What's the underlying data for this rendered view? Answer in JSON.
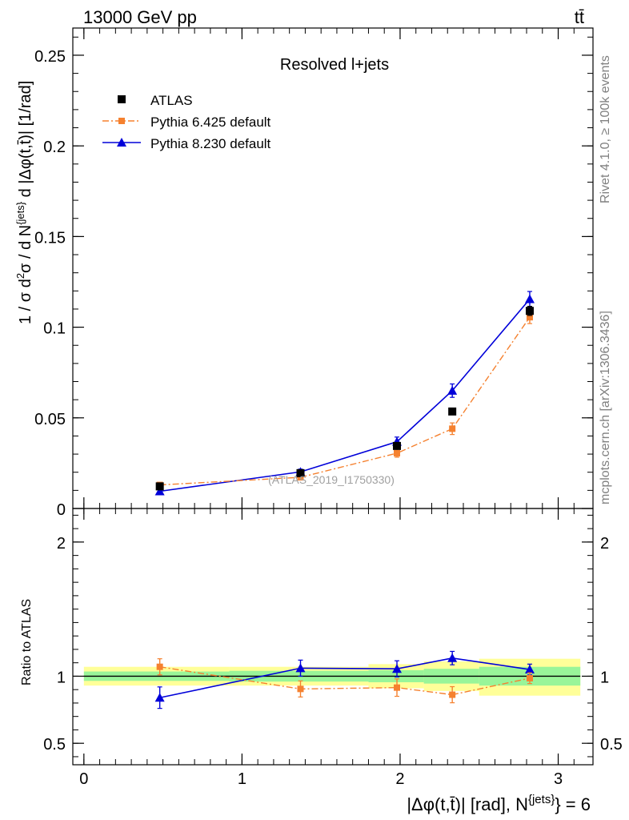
{
  "header": {
    "energy_label": "13000 GeV pp",
    "process_label": "tt̄"
  },
  "side": {
    "rivet_label": "Rivet 4.1.0, ≥ 100k events",
    "mcplots_label": "mcplots.cern.ch [arXiv:1306.3436]"
  },
  "colors": {
    "data": "#000000",
    "pythia6": "#f5812f",
    "pythia8": "#0000d9",
    "band_inner": "#99f599",
    "band_outer": "#ffff99",
    "watermark": "#a0a0a0"
  },
  "chart_data": [
    {
      "type": "scatter",
      "title": "Resolved l+jets",
      "watermark": "(ATLAS_2019_I1750330)",
      "ylabel": "1 / σ d²σ / d N^{jets} d |Δφ(t,t̄)| [1/rad]",
      "xlim": [
        -0.07,
        3.22
      ],
      "ylim": [
        0,
        0.265
      ],
      "yticks": [
        0,
        0.05,
        0.1,
        0.15,
        0.2,
        0.25
      ],
      "ytick_labels": [
        "0",
        "0.05",
        "0.1",
        "0.15",
        "0.2",
        "0.25"
      ],
      "legend": [
        "ATLAS",
        "Pythia 6.425 default",
        "Pythia 8.230 default"
      ],
      "legend_position": "top-left",
      "series": [
        {
          "name": "ATLAS",
          "style": "markers",
          "x": [
            0.48,
            1.37,
            1.98,
            2.33,
            2.82
          ],
          "y": [
            0.0122,
            0.0195,
            0.0345,
            0.0535,
            0.109
          ],
          "yerr": [
            0.0005,
            0.0007,
            0.001,
            0.0015,
            0.0025
          ]
        },
        {
          "name": "Pythia 6.425 default",
          "style": "dashdot",
          "x": [
            0.48,
            1.37,
            1.98,
            2.33,
            2.82
          ],
          "y": [
            0.013,
            0.0172,
            0.0305,
            0.044,
            0.1055
          ],
          "yerr": [
            0.0008,
            0.0014,
            0.0022,
            0.0032,
            0.0035
          ]
        },
        {
          "name": "Pythia 8.230 default",
          "style": "solid",
          "x": [
            0.48,
            1.37,
            1.98,
            2.33,
            2.82
          ],
          "y": [
            0.0095,
            0.0202,
            0.0368,
            0.065,
            0.1155
          ],
          "yerr": [
            0.0009,
            0.0015,
            0.0026,
            0.0037,
            0.0042
          ]
        }
      ]
    },
    {
      "type": "scatter",
      "ylabel": "Ratio to ATLAS",
      "xlabel": "|Δφ(t,t̄)| [rad], N^{jets} = 6",
      "xlim": [
        -0.07,
        3.22
      ],
      "ylim": [
        0.34,
        2.25
      ],
      "xticks": [
        0,
        1,
        2,
        3
      ],
      "xtick_labels": [
        "0",
        "1",
        "2",
        "3"
      ],
      "yticks": [
        0.5,
        1,
        2
      ],
      "ytick_labels": [
        "0.5",
        "1",
        "2"
      ],
      "reference": 1,
      "bands": [
        {
          "x0": 0.0,
          "x1": 0.92,
          "inner": [
            0.965,
            1.035
          ],
          "outer": [
            0.93,
            1.07
          ]
        },
        {
          "x0": 0.92,
          "x1": 1.8,
          "inner": [
            0.96,
            1.04
          ],
          "outer": [
            0.93,
            1.07
          ]
        },
        {
          "x0": 1.8,
          "x1": 2.15,
          "inner": [
            0.955,
            1.045
          ],
          "outer": [
            0.91,
            1.09
          ]
        },
        {
          "x0": 2.15,
          "x1": 2.5,
          "inner": [
            0.945,
            1.055
          ],
          "outer": [
            0.89,
            1.11
          ]
        },
        {
          "x0": 2.5,
          "x1": 3.14,
          "inner": [
            0.93,
            1.07
          ],
          "outer": [
            0.855,
            1.13
          ]
        }
      ],
      "series": [
        {
          "name": "Pythia 6.425 default",
          "style": "dashdot",
          "x": [
            0.48,
            1.37,
            1.98,
            2.33,
            2.82
          ],
          "y": [
            1.07,
            0.905,
            0.915,
            0.862,
            0.985
          ],
          "yerr": [
            0.06,
            0.06,
            0.065,
            0.06,
            0.04
          ]
        },
        {
          "name": "Pythia 8.230 default",
          "style": "solid",
          "x": [
            0.48,
            1.37,
            1.98,
            2.33,
            2.82
          ],
          "y": [
            0.84,
            1.06,
            1.055,
            1.135,
            1.05
          ],
          "yerr": [
            0.08,
            0.06,
            0.06,
            0.05,
            0.04
          ]
        }
      ]
    }
  ]
}
